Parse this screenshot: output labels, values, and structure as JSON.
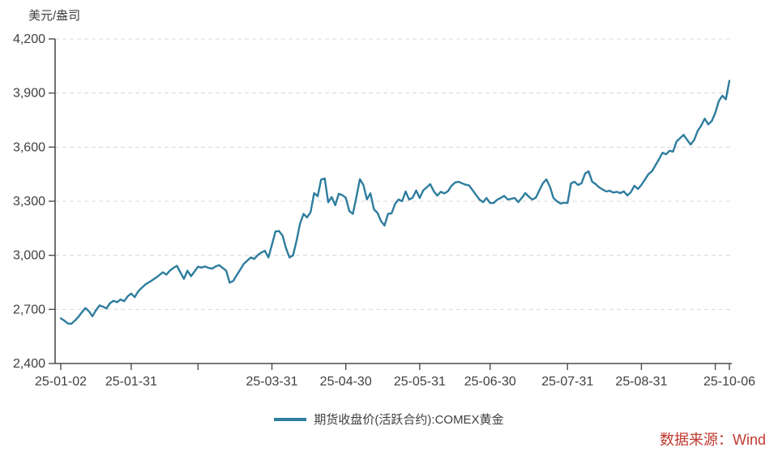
{
  "chart": {
    "unit_label": "美元/盎司",
    "legend": {
      "label": "期货收盘价(活跃合约):COMEX黄金",
      "color": "#2e7d9e"
    },
    "source": {
      "label": "数据来源：Wind",
      "color": "#c0392f"
    }
  },
  "chart_data": {
    "type": "line",
    "title": "期货收盘价(活跃合约):COMEX黄金",
    "ylabel": "美元/盎司",
    "ylim": [
      2400,
      4200
    ],
    "yticks": [
      2400,
      2700,
      3000,
      3300,
      3600,
      3900,
      4200
    ],
    "grid": "horizontal-dashed",
    "grid_color": "#d8d8d8",
    "axis_color": "#4d4d4d",
    "tick_label_color": "#404040",
    "legend_position": "bottom-center",
    "x_axis": {
      "kind": "trading-days",
      "start": "25-01-02",
      "end": "25-10-06",
      "n_points": 191
    },
    "x_ticks": [
      {
        "index": 0,
        "label": "25-01-02"
      },
      {
        "index": 20,
        "label": "25-01-31"
      },
      {
        "index": 39,
        "label": ""
      },
      {
        "index": 60,
        "label": "25-03-31"
      },
      {
        "index": 81,
        "label": "25-04-30"
      },
      {
        "index": 102,
        "label": "25-05-31"
      },
      {
        "index": 122,
        "label": "25-06-30"
      },
      {
        "index": 144,
        "label": "25-07-31"
      },
      {
        "index": 165,
        "label": "25-08-31"
      },
      {
        "index": 186,
        "label": ""
      },
      {
        "index": 190,
        "label": "25-10-06"
      }
    ],
    "series": [
      {
        "name": "期货收盘价(活跃合约):COMEX黄金",
        "color": "#2e7d9e",
        "values": [
          2650,
          2638,
          2622,
          2620,
          2638,
          2658,
          2685,
          2708,
          2690,
          2662,
          2695,
          2722,
          2715,
          2705,
          2735,
          2748,
          2740,
          2755,
          2745,
          2772,
          2788,
          2768,
          2800,
          2820,
          2838,
          2850,
          2862,
          2875,
          2890,
          2906,
          2893,
          2915,
          2930,
          2942,
          2905,
          2870,
          2915,
          2884,
          2910,
          2937,
          2932,
          2938,
          2930,
          2926,
          2938,
          2946,
          2930,
          2915,
          2848,
          2858,
          2890,
          2920,
          2952,
          2970,
          2988,
          2980,
          3002,
          3015,
          3025,
          2988,
          3058,
          3132,
          3135,
          3110,
          3040,
          2988,
          3000,
          3080,
          3177,
          3230,
          3210,
          3240,
          3345,
          3328,
          3420,
          3426,
          3294,
          3323,
          3278,
          3341,
          3334,
          3319,
          3245,
          3230,
          3322,
          3422,
          3390,
          3310,
          3344,
          3255,
          3235,
          3190,
          3165,
          3230,
          3233,
          3285,
          3310,
          3300,
          3354,
          3309,
          3320,
          3360,
          3318,
          3360,
          3377,
          3395,
          3355,
          3331,
          3352,
          3343,
          3355,
          3385,
          3403,
          3408,
          3400,
          3392,
          3388,
          3362,
          3335,
          3309,
          3295,
          3318,
          3290,
          3290,
          3308,
          3318,
          3330,
          3310,
          3313,
          3318,
          3295,
          3318,
          3345,
          3325,
          3309,
          3320,
          3360,
          3400,
          3421,
          3380,
          3318,
          3300,
          3287,
          3292,
          3290,
          3399,
          3408,
          3390,
          3400,
          3454,
          3466,
          3408,
          3395,
          3377,
          3365,
          3354,
          3358,
          3348,
          3352,
          3345,
          3355,
          3332,
          3350,
          3386,
          3368,
          3390,
          3420,
          3450,
          3466,
          3500,
          3533,
          3569,
          3560,
          3580,
          3575,
          3632,
          3650,
          3668,
          3640,
          3614,
          3640,
          3690,
          3720,
          3758,
          3726,
          3745,
          3790,
          3856,
          3885,
          3865,
          3968
        ]
      }
    ]
  }
}
